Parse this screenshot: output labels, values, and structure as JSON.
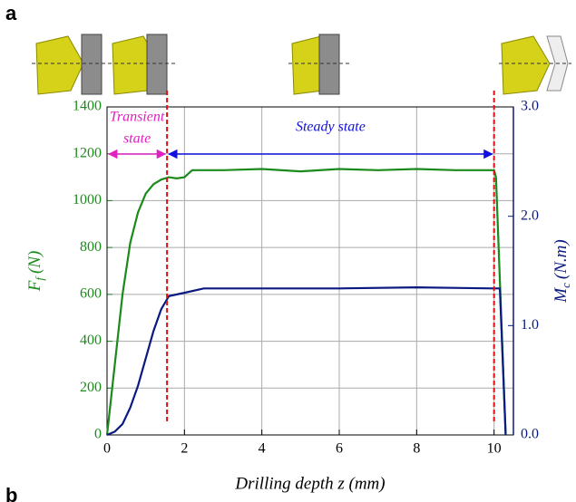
{
  "chart_data": {
    "type": "line",
    "panel_label": "a",
    "next_panel_label": "b",
    "x_label": "Drilling depth z (mm)",
    "y_label": {
      "symbol": "F",
      "sub": "f",
      "unit": "(N)"
    },
    "y2_label": {
      "symbol": "M",
      "sub": "c",
      "unit": "(N.m)"
    },
    "annotations": {
      "transient": [
        "Transient",
        "state"
      ],
      "steady": "Steady state"
    },
    "phase_boundaries": [
      1.55,
      10.0
    ],
    "xlim": [
      0,
      10.5
    ],
    "xticks": [
      0,
      2,
      4,
      6,
      8,
      10
    ],
    "ylim": [
      0,
      1400
    ],
    "yticks": [
      0,
      200,
      400,
      600,
      800,
      1000,
      1200,
      1400
    ],
    "y2lim": [
      0,
      3.0
    ],
    "y2ticks": [
      {
        "value": 0,
        "label": "0.0"
      },
      {
        "value": 1,
        "label": "1.0"
      },
      {
        "value": 2,
        "label": "2.0"
      },
      {
        "value": 3,
        "label": "3.0"
      }
    ],
    "grid": true,
    "series": [
      {
        "name": "Ff",
        "color": "#1a8a1a",
        "x": [
          0,
          0.2,
          0.4,
          0.6,
          0.8,
          1.0,
          1.2,
          1.4,
          1.6,
          1.8,
          2.0,
          2.2,
          3,
          4,
          5,
          6,
          7,
          8,
          9,
          10,
          10.05,
          10.3
        ],
        "values": [
          0,
          300,
          600,
          820,
          950,
          1030,
          1070,
          1090,
          1100,
          1095,
          1100,
          1130,
          1130,
          1135,
          1125,
          1135,
          1130,
          1135,
          1130,
          1130,
          1100,
          0
        ]
      },
      {
        "name": "Mc",
        "color": "#0a1a80",
        "axis": "y2",
        "x": [
          0,
          0.2,
          0.4,
          0.6,
          0.8,
          1.0,
          1.2,
          1.4,
          1.6,
          2.0,
          2.5,
          4,
          6,
          8,
          10,
          10.15,
          10.3
        ],
        "values": [
          0,
          0.03,
          0.1,
          0.25,
          0.45,
          0.7,
          0.95,
          1.15,
          1.27,
          1.3,
          1.34,
          1.34,
          1.34,
          1.35,
          1.34,
          1.34,
          0
        ]
      }
    ]
  }
}
